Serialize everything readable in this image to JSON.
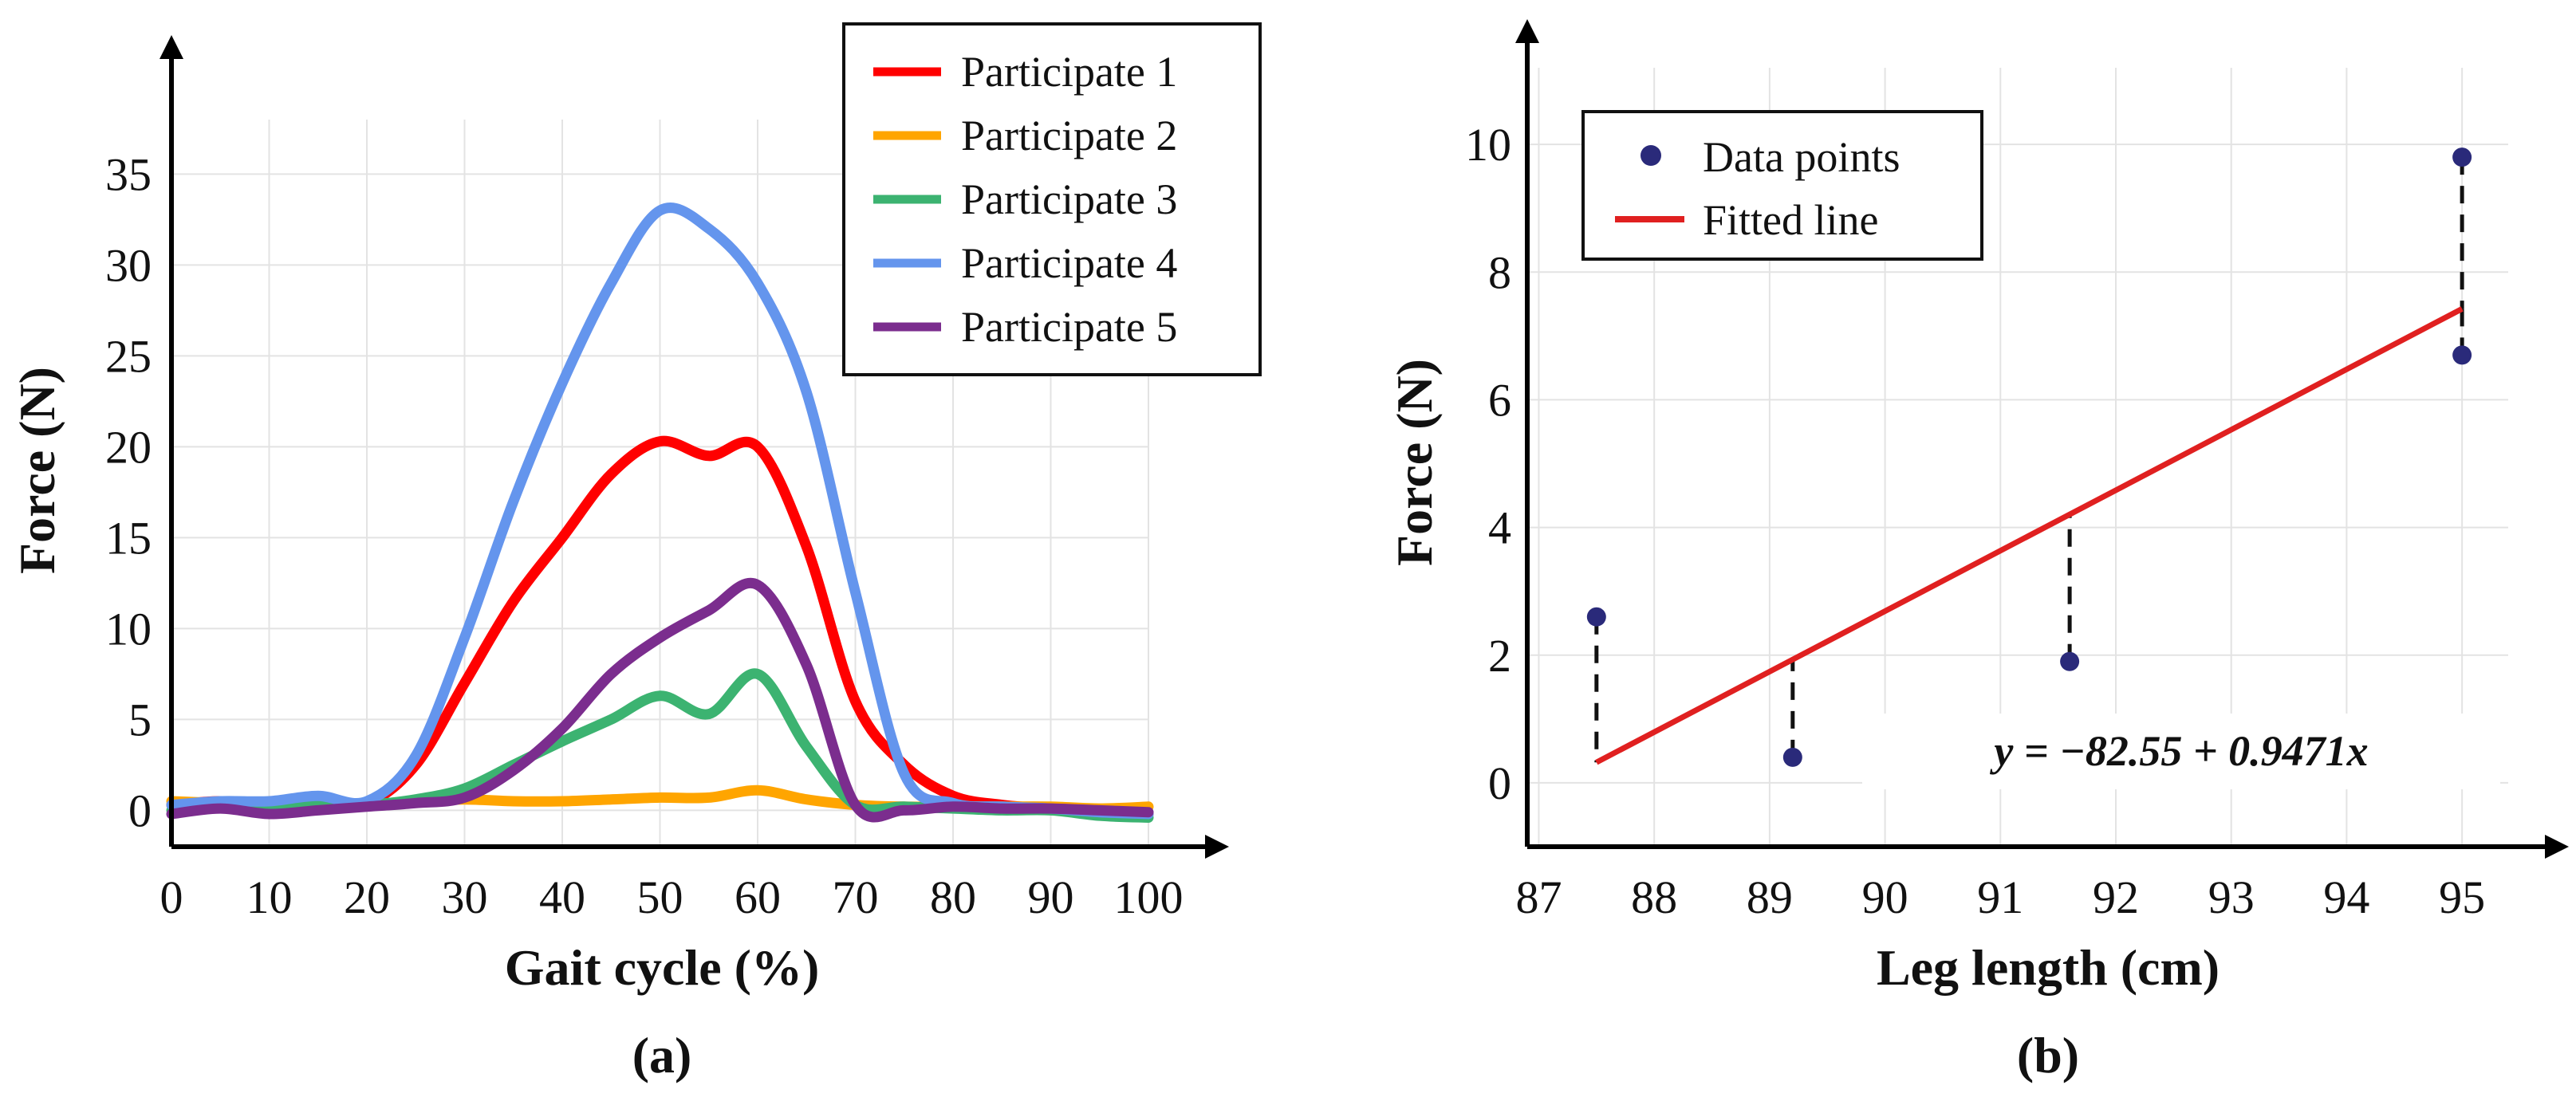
{
  "chart_data": [
    {
      "type": "line",
      "panel_label": "(a)",
      "xlabel": "Gait cycle (%)",
      "ylabel": "Force (N)",
      "xlim": [
        0,
        100
      ],
      "ylim": [
        -2,
        38
      ],
      "xticks": [
        0,
        10,
        20,
        30,
        40,
        50,
        60,
        70,
        80,
        90,
        100
      ],
      "yticks": [
        0,
        5,
        10,
        15,
        20,
        25,
        30,
        35
      ],
      "grid": true,
      "legend_position": "top-right",
      "x": [
        0,
        5,
        10,
        15,
        20,
        25,
        30,
        35,
        40,
        45,
        50,
        55,
        60,
        65,
        70,
        75,
        80,
        85,
        90,
        95,
        100
      ],
      "series": [
        {
          "name": "Participate 1",
          "color": "#ff0000",
          "values": [
            0.3,
            0.5,
            0.3,
            0.6,
            0.4,
            2.5,
            7.0,
            11.5,
            15.0,
            18.5,
            20.3,
            19.5,
            20.0,
            14.5,
            6.0,
            2.5,
            0.8,
            0.3,
            0.1,
            -0.1,
            -0.2
          ]
        },
        {
          "name": "Participate 2",
          "color": "#ffa500",
          "values": [
            0.5,
            0.4,
            0.3,
            0.2,
            0.3,
            0.5,
            0.6,
            0.5,
            0.5,
            0.6,
            0.7,
            0.7,
            1.1,
            0.6,
            0.3,
            0.2,
            0.2,
            0.2,
            0.2,
            0.1,
            0.2
          ]
        },
        {
          "name": "Participate 3",
          "color": "#3cb371",
          "values": [
            0.0,
            0.2,
            0.1,
            0.3,
            0.3,
            0.6,
            1.2,
            2.5,
            3.8,
            5.0,
            6.3,
            5.3,
            7.5,
            3.5,
            0.3,
            0.2,
            0.1,
            0.0,
            0.0,
            -0.3,
            -0.4
          ]
        },
        {
          "name": "Participate 4",
          "color": "#6495ed",
          "values": [
            0.3,
            0.5,
            0.5,
            0.8,
            0.5,
            3.0,
            9.5,
            17.0,
            23.5,
            29.0,
            33.0,
            32.0,
            29.0,
            23.0,
            12.0,
            2.0,
            0.4,
            0.2,
            0.1,
            -0.1,
            -0.2
          ]
        },
        {
          "name": "Participate 5",
          "color": "#7b2d8e",
          "values": [
            -0.2,
            0.1,
            -0.2,
            0.0,
            0.2,
            0.4,
            0.7,
            2.2,
            4.5,
            7.5,
            9.5,
            11.0,
            12.4,
            8.0,
            0.3,
            0.0,
            0.2,
            0.1,
            0.1,
            0.0,
            -0.1
          ]
        }
      ]
    },
    {
      "type": "scatter",
      "panel_label": "(b)",
      "xlabel": "Leg length (cm)",
      "ylabel": "Force (N)",
      "xlim": [
        86.9,
        95.4
      ],
      "ylim": [
        -1,
        11.2
      ],
      "xticks": [
        87,
        88,
        89,
        90,
        91,
        92,
        93,
        94,
        95
      ],
      "yticks": [
        0,
        2,
        4,
        6,
        8,
        10
      ],
      "grid": true,
      "legend_position": "top-left",
      "points_series_name": "Data points",
      "points_color": "#2a2a7a",
      "points": [
        {
          "x": 87.5,
          "y": 2.6
        },
        {
          "x": 89.2,
          "y": 0.4
        },
        {
          "x": 91.6,
          "y": 1.9
        },
        {
          "x": 95.0,
          "y": 9.8
        },
        {
          "x": 95.0,
          "y": 6.7
        }
      ],
      "fit_series_name": "Fitted line",
      "fit_color": "#e02020",
      "fit": {
        "intercept": -82.55,
        "slope": 0.9471,
        "x_range": [
          87.5,
          95.0
        ]
      },
      "equation": "y = −82.55 + 0.9471x"
    }
  ]
}
